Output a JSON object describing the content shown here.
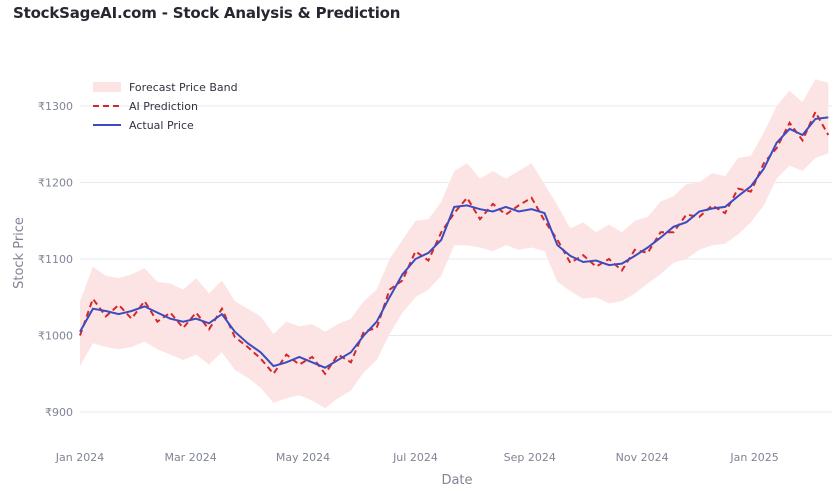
{
  "page": {
    "title": "StockSageAI.com - Stock Analysis & Prediction"
  },
  "chart_data": {
    "type": "line",
    "title": "StockSageAI.com - Stock Analysis & Prediction",
    "xlabel": "Date",
    "ylabel": "Stock Price",
    "x_range": [
      "2024-01-01",
      "2025-02-12"
    ],
    "x_ticks": [
      "Jan 2024",
      "Mar 2024",
      "May 2024",
      "Jul 2024",
      "Sep 2024",
      "Nov 2024",
      "Jan 2025"
    ],
    "y_ticks": [
      "₹900",
      "₹1000",
      "₹1100",
      "₹1200",
      "₹1300"
    ],
    "ylim": [
      870,
      1360
    ],
    "grid": true,
    "legend_position": "top-left",
    "legend": [
      "Forecast Price Band",
      "AI Prediction",
      "Actual Price"
    ],
    "colors": {
      "band": "#fde4e4",
      "prediction": "#d62728",
      "actual": "#3b4cc0"
    },
    "series": [
      {
        "name": "Actual Price",
        "x": [
          "2024-01-01",
          "2024-01-08",
          "2024-01-15",
          "2024-01-22",
          "2024-01-29",
          "2024-02-05",
          "2024-02-12",
          "2024-02-19",
          "2024-02-26",
          "2024-03-04",
          "2024-03-11",
          "2024-03-18",
          "2024-03-25",
          "2024-04-01",
          "2024-04-08",
          "2024-04-15",
          "2024-04-22",
          "2024-04-29",
          "2024-05-06",
          "2024-05-13",
          "2024-05-20",
          "2024-05-27",
          "2024-06-03",
          "2024-06-10",
          "2024-06-17",
          "2024-06-24",
          "2024-07-01",
          "2024-07-08",
          "2024-07-15",
          "2024-07-22",
          "2024-07-29",
          "2024-08-05",
          "2024-08-12",
          "2024-08-19",
          "2024-08-26",
          "2024-09-02",
          "2024-09-09",
          "2024-09-16",
          "2024-09-23",
          "2024-09-30",
          "2024-10-07",
          "2024-10-14",
          "2024-10-21",
          "2024-10-28",
          "2024-11-04",
          "2024-11-11",
          "2024-11-18",
          "2024-11-25",
          "2024-12-02",
          "2024-12-09",
          "2024-12-16",
          "2024-12-23",
          "2024-12-30",
          "2025-01-06",
          "2025-01-13",
          "2025-01-20",
          "2025-01-27",
          "2025-02-03",
          "2025-02-10"
        ],
        "y": [
          1005,
          1035,
          1032,
          1028,
          1032,
          1038,
          1030,
          1022,
          1018,
          1022,
          1016,
          1028,
          1005,
          990,
          978,
          960,
          965,
          972,
          965,
          958,
          968,
          978,
          1000,
          1018,
          1050,
          1080,
          1100,
          1108,
          1125,
          1168,
          1170,
          1165,
          1162,
          1168,
          1162,
          1165,
          1160,
          1118,
          1104,
          1096,
          1098,
          1092,
          1094,
          1104,
          1115,
          1128,
          1142,
          1148,
          1162,
          1166,
          1168,
          1182,
          1195,
          1218,
          1252,
          1270,
          1262,
          1283,
          1285
        ]
      },
      {
        "name": "AI Prediction",
        "x": [
          "2024-01-01",
          "2024-01-08",
          "2024-01-15",
          "2024-01-22",
          "2024-01-29",
          "2024-02-05",
          "2024-02-12",
          "2024-02-19",
          "2024-02-26",
          "2024-03-04",
          "2024-03-11",
          "2024-03-18",
          "2024-03-25",
          "2024-04-01",
          "2024-04-08",
          "2024-04-15",
          "2024-04-22",
          "2024-04-29",
          "2024-05-06",
          "2024-05-13",
          "2024-05-20",
          "2024-05-27",
          "2024-06-03",
          "2024-06-10",
          "2024-06-17",
          "2024-06-24",
          "2024-07-01",
          "2024-07-08",
          "2024-07-15",
          "2024-07-22",
          "2024-07-29",
          "2024-08-05",
          "2024-08-12",
          "2024-08-19",
          "2024-08-26",
          "2024-09-02",
          "2024-09-09",
          "2024-09-16",
          "2024-09-23",
          "2024-09-30",
          "2024-10-07",
          "2024-10-14",
          "2024-10-21",
          "2024-10-28",
          "2024-11-04",
          "2024-11-11",
          "2024-11-18",
          "2024-11-25",
          "2024-12-02",
          "2024-12-09",
          "2024-12-16",
          "2024-12-23",
          "2024-12-30",
          "2025-01-06",
          "2025-01-13",
          "2025-01-20",
          "2025-01-27",
          "2025-02-03",
          "2025-02-10"
        ],
        "y": [
          1000,
          1048,
          1025,
          1040,
          1022,
          1045,
          1018,
          1030,
          1010,
          1030,
          1008,
          1035,
          998,
          985,
          970,
          950,
          975,
          962,
          972,
          950,
          975,
          965,
          1005,
          1010,
          1060,
          1072,
          1110,
          1098,
          1135,
          1160,
          1180,
          1152,
          1172,
          1158,
          1170,
          1180,
          1150,
          1125,
          1095,
          1105,
          1090,
          1100,
          1085,
          1112,
          1108,
          1135,
          1135,
          1158,
          1155,
          1170,
          1160,
          1192,
          1188,
          1225,
          1245,
          1278,
          1255,
          1292,
          1262
        ]
      }
    ],
    "band": {
      "name": "Forecast Price Band",
      "x": [
        "2024-01-01",
        "2024-01-08",
        "2024-01-15",
        "2024-01-22",
        "2024-01-29",
        "2024-02-05",
        "2024-02-12",
        "2024-02-19",
        "2024-02-26",
        "2024-03-04",
        "2024-03-11",
        "2024-03-18",
        "2024-03-25",
        "2024-04-01",
        "2024-04-08",
        "2024-04-15",
        "2024-04-22",
        "2024-04-29",
        "2024-05-06",
        "2024-05-13",
        "2024-05-20",
        "2024-05-27",
        "2024-06-03",
        "2024-06-10",
        "2024-06-17",
        "2024-06-24",
        "2024-07-01",
        "2024-07-08",
        "2024-07-15",
        "2024-07-22",
        "2024-07-29",
        "2024-08-05",
        "2024-08-12",
        "2024-08-19",
        "2024-08-26",
        "2024-09-02",
        "2024-09-09",
        "2024-09-16",
        "2024-09-23",
        "2024-09-30",
        "2024-10-07",
        "2024-10-14",
        "2024-10-21",
        "2024-10-28",
        "2024-11-04",
        "2024-11-11",
        "2024-11-18",
        "2024-11-25",
        "2024-12-02",
        "2024-12-09",
        "2024-12-16",
        "2024-12-23",
        "2024-12-30",
        "2025-01-06",
        "2025-01-13",
        "2025-01-20",
        "2025-01-27",
        "2025-02-03",
        "2025-02-10"
      ],
      "upper": [
        1045,
        1090,
        1078,
        1075,
        1080,
        1088,
        1070,
        1068,
        1060,
        1075,
        1055,
        1072,
        1045,
        1035,
        1025,
        1002,
        1018,
        1012,
        1015,
        1005,
        1015,
        1022,
        1045,
        1060,
        1100,
        1125,
        1150,
        1152,
        1175,
        1215,
        1225,
        1205,
        1215,
        1205,
        1215,
        1225,
        1198,
        1170,
        1140,
        1148,
        1135,
        1145,
        1135,
        1150,
        1155,
        1175,
        1182,
        1198,
        1200,
        1212,
        1208,
        1232,
        1235,
        1265,
        1300,
        1320,
        1305,
        1335,
        1330
      ],
      "lower": [
        960,
        990,
        985,
        982,
        985,
        992,
        982,
        975,
        968,
        975,
        962,
        978,
        955,
        945,
        932,
        912,
        918,
        922,
        915,
        905,
        918,
        928,
        952,
        968,
        1002,
        1030,
        1050,
        1060,
        1078,
        1118,
        1118,
        1115,
        1110,
        1118,
        1112,
        1115,
        1110,
        1070,
        1058,
        1048,
        1050,
        1042,
        1045,
        1055,
        1068,
        1080,
        1095,
        1100,
        1112,
        1118,
        1120,
        1132,
        1148,
        1170,
        1205,
        1222,
        1215,
        1232,
        1238
      ]
    }
  }
}
